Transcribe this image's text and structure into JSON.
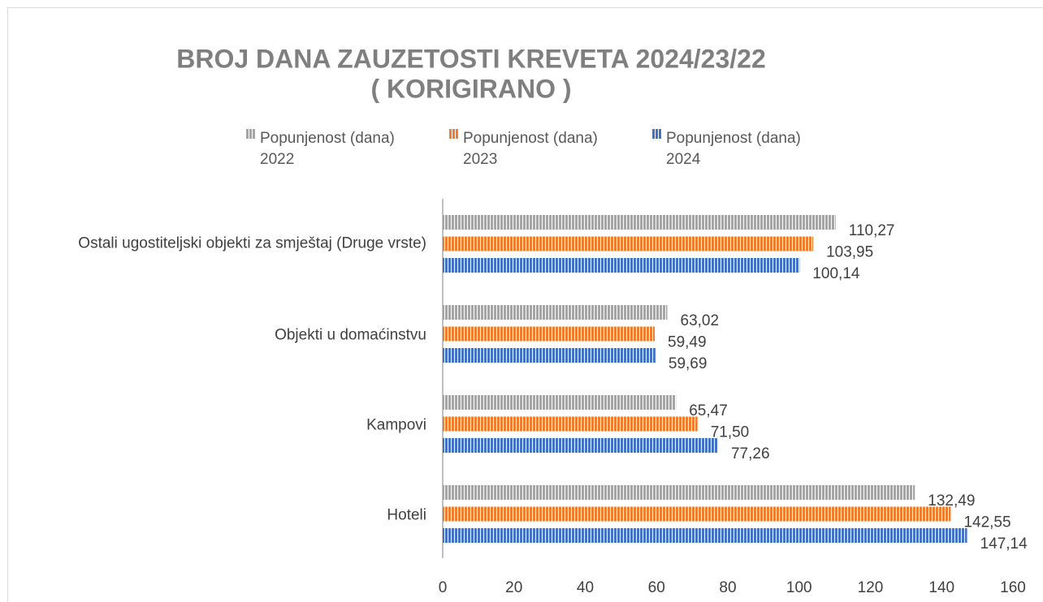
{
  "chart_data": {
    "type": "bar",
    "orientation": "horizontal",
    "title": "BROJ DANA ZAUZETOSTI KREVETA 2024/23/22",
    "subtitle": "( KORIGIRANO )",
    "categories": [
      "Ostali ugostiteljski objekti za smještaj (Druge vrste)",
      "Objekti u domaćinstvu",
      "Kampovi",
      "Hoteli"
    ],
    "series": [
      {
        "name": "Popunjenost (dana) 2022",
        "color": "#a5a5a5",
        "values": [
          110.27,
          63.02,
          65.47,
          132.49
        ],
        "value_labels": [
          "110,27",
          "63,02",
          "65,47",
          "132,49"
        ]
      },
      {
        "name": "Popunjenost (dana) 2023",
        "color": "#ed7d31",
        "values": [
          103.95,
          59.49,
          71.5,
          142.55
        ],
        "value_labels": [
          "103,95",
          "59,49",
          "71,50",
          "142,55"
        ]
      },
      {
        "name": "Popunjenost (dana) 2024",
        "color": "#4472c4",
        "values": [
          100.14,
          59.69,
          77.26,
          147.14
        ],
        "value_labels": [
          "100,14",
          "59,69",
          "77,26",
          "147,14"
        ]
      }
    ],
    "xlim": [
      0,
      160
    ],
    "xticks": [
      0,
      20,
      40,
      60,
      80,
      100,
      120,
      140,
      160
    ],
    "legend": "top",
    "grid": false
  }
}
